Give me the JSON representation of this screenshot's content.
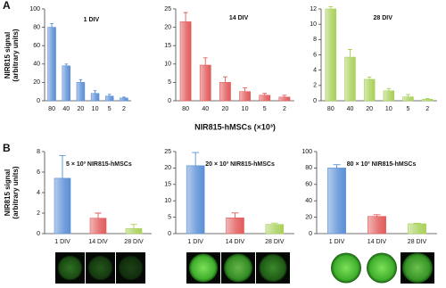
{
  "chart_data": [
    {
      "type": "bar",
      "panel": "A",
      "title": "1 DIV",
      "ylabel": [
        "NIR815 signal",
        "(arbitrary units)"
      ],
      "categories": [
        "80",
        "40",
        "20",
        "10",
        "5",
        "2"
      ],
      "values": [
        80,
        38,
        20,
        8,
        5,
        3
      ],
      "errors": [
        4,
        2,
        3,
        3,
        2,
        1
      ],
      "color": "#5b8fd6",
      "ylim": [
        0,
        100
      ],
      "yticks": [
        0,
        20,
        40,
        60,
        80,
        100
      ]
    },
    {
      "type": "bar",
      "title": "14 DIV",
      "xlabel": "NIR815-hMSCs (×10³)",
      "categories": [
        "80",
        "40",
        "20",
        "10",
        "5",
        "2"
      ],
      "values": [
        21.5,
        9.7,
        5,
        2.5,
        1.5,
        1
      ],
      "errors": [
        2.5,
        2,
        1.5,
        1,
        0.5,
        0.5
      ],
      "color": "#e25b5b",
      "ylim": [
        0,
        25
      ],
      "yticks": [
        0,
        5,
        10,
        15,
        20,
        25
      ]
    },
    {
      "type": "bar",
      "title": "28 DIV",
      "categories": [
        "80",
        "40",
        "20",
        "10",
        "5",
        "2"
      ],
      "values": [
        12,
        5.7,
        2.8,
        1.3,
        0.5,
        0.2
      ],
      "errors": [
        0.3,
        1,
        0.3,
        0.3,
        0.3,
        0.1
      ],
      "color": "#a9d15a",
      "ylim": [
        0,
        12
      ],
      "yticks": [
        0,
        2,
        4,
        6,
        8,
        10,
        12
      ]
    },
    {
      "type": "bar",
      "panel": "B",
      "title": "5 × 10³ NIR815-hMSCs",
      "ylabel": [
        "NIR815 signal",
        "(arbitrary units)"
      ],
      "categories": [
        "1 DIV",
        "14 DIV",
        "28 DIV"
      ],
      "values": [
        5.4,
        1.5,
        0.5
      ],
      "errors": [
        2.2,
        0.5,
        0.4
      ],
      "colors": [
        "#5b8fd6",
        "#e25b5b",
        "#a9d15a"
      ],
      "ylim": [
        0,
        8
      ],
      "yticks": [
        0,
        2,
        4,
        6,
        8
      ]
    },
    {
      "type": "bar",
      "title": "20 × 10³ NIR815-hMSCs",
      "categories": [
        "1 DIV",
        "14 DIV",
        "28 DIV"
      ],
      "values": [
        20.7,
        4.8,
        2.8
      ],
      "errors": [
        4,
        1.5,
        0.4
      ],
      "colors": [
        "#5b8fd6",
        "#e25b5b",
        "#a9d15a"
      ],
      "ylim": [
        0,
        25
      ],
      "yticks": [
        0,
        5,
        10,
        15,
        20,
        25
      ]
    },
    {
      "type": "bar",
      "title": "80 × 10³ NIR815-hMSCs",
      "categories": [
        "1 DIV",
        "14 DIV",
        "28 DIV"
      ],
      "values": [
        80,
        21,
        12
      ],
      "errors": [
        4,
        2,
        0.5
      ],
      "colors": [
        "#5b8fd6",
        "#e25b5b",
        "#a9d15a"
      ],
      "ylim": [
        0,
        100
      ],
      "yticks": [
        0,
        20,
        40,
        60,
        80,
        100
      ]
    }
  ]
}
